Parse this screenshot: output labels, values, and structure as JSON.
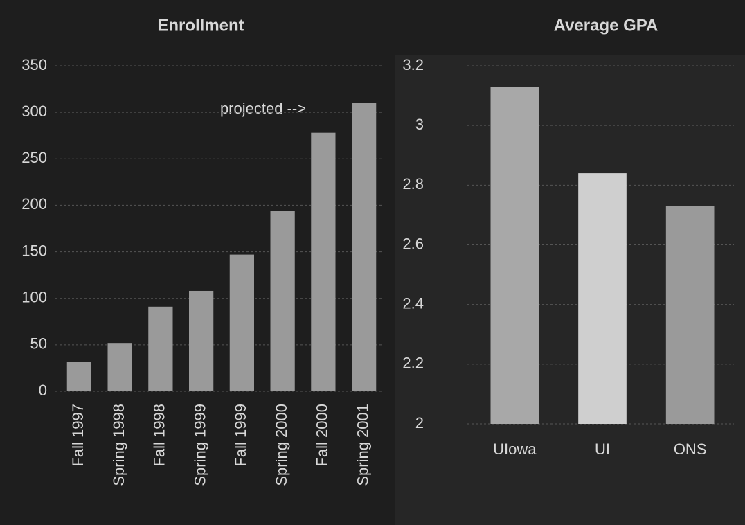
{
  "chart_data": [
    {
      "type": "bar",
      "title": "Enrollment",
      "annotation": "projected -->",
      "categories": [
        "Fall 1997",
        "Spring 1998",
        "Fall 1998",
        "Spring 1999",
        "Fall 1999",
        "Spring 2000",
        "Fall 2000",
        "Spring 2001"
      ],
      "values": [
        32,
        52,
        91,
        108,
        147,
        194,
        278,
        310
      ],
      "color": "#9a9a9a",
      "ylim": [
        0,
        350
      ],
      "yticks": [
        0,
        50,
        100,
        150,
        200,
        250,
        300,
        350
      ],
      "grid": true
    },
    {
      "type": "bar",
      "title": "Average GPA",
      "categories": [
        "UIowa",
        "UI",
        "ONS"
      ],
      "values": [
        3.13,
        2.84,
        2.73
      ],
      "colors": [
        "#a8a8a8",
        "#cfcfcf",
        "#9a9a9a"
      ],
      "ylim": [
        2,
        3.2
      ],
      "yticks": [
        2,
        2.2,
        2.4,
        2.6,
        2.8,
        3,
        3.2
      ],
      "grid": true
    }
  ]
}
